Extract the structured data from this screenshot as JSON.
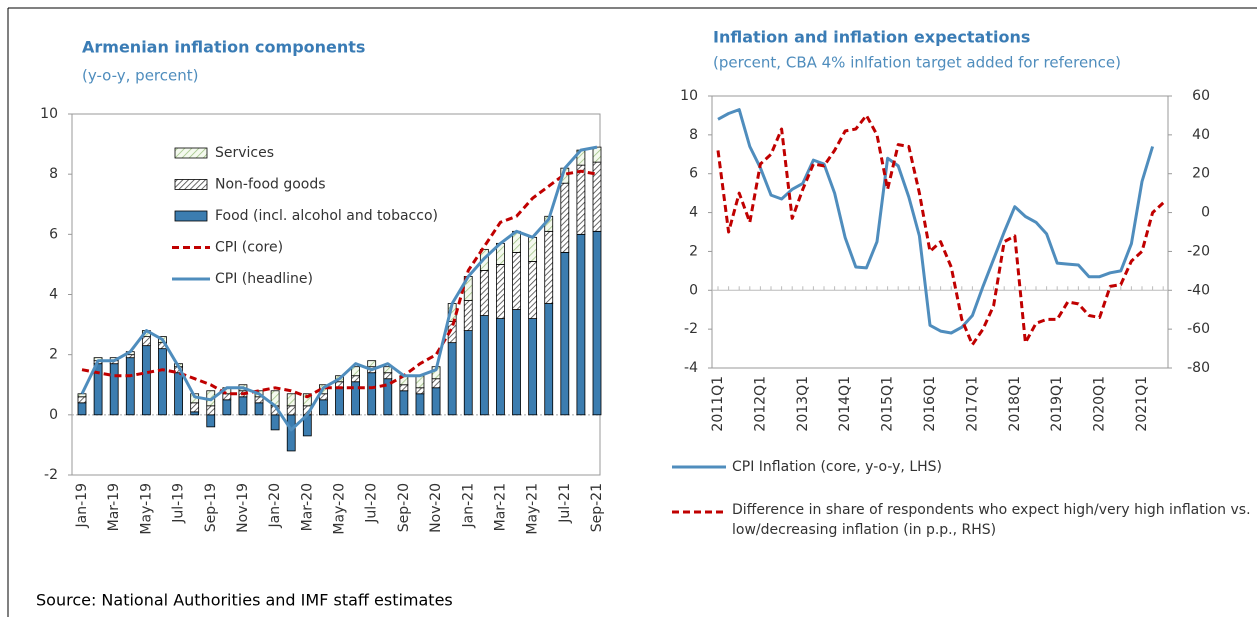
{
  "chart_data": [
    {
      "type": "bar",
      "title": "Armenian inflation components",
      "subtitle": "(y-o-y, percent)",
      "categories": [
        "Jan-19",
        null,
        "Mar-19",
        null,
        "May-19",
        null,
        "Jul-19",
        null,
        "Sep-19",
        null,
        "Nov-19",
        null,
        "Jan-20",
        null,
        "Mar-20",
        null,
        "May-20",
        null,
        "Jul-20",
        null,
        "Sep-20",
        null,
        "Nov-20",
        null,
        "Jan-21",
        null,
        "Mar-21",
        null,
        "May-21",
        null,
        "Jul-21",
        null,
        "Sep-21"
      ],
      "ylim": [
        -2,
        10
      ],
      "yticks": [
        -2,
        0,
        2,
        4,
        6,
        8,
        10
      ],
      "series": [
        {
          "name": "Services",
          "type": "bar",
          "pattern": "light-hatch",
          "color": "#e2efd9",
          "values": [
            0.1,
            0.1,
            0.1,
            0.1,
            0.2,
            0.2,
            0.1,
            0.3,
            0.5,
            0.2,
            0.2,
            0.2,
            0.5,
            0.4,
            0.4,
            0.3,
            0.2,
            0.3,
            0.2,
            0.2,
            0.3,
            0.4,
            0.4,
            0.6,
            0.8,
            0.7,
            0.7,
            0.7,
            0.8,
            0.5,
            0.5,
            0.5,
            0.5
          ]
        },
        {
          "name": "Non-food goods",
          "type": "bar",
          "pattern": "dark-hatch",
          "color": "#555555",
          "values": [
            0.2,
            0.1,
            0.1,
            0.1,
            0.3,
            0.2,
            0.2,
            0.3,
            0.3,
            0.2,
            0.2,
            0.2,
            0.3,
            0.3,
            0.3,
            0.2,
            0.2,
            0.2,
            0.2,
            0.2,
            0.2,
            0.2,
            0.3,
            0.7,
            1.0,
            1.5,
            1.8,
            1.9,
            1.9,
            2.4,
            2.3,
            2.3,
            2.3
          ]
        },
        {
          "name": "Food (incl. alcohol and tobacco)",
          "type": "bar",
          "pattern": "solid",
          "color": "#3c7db0",
          "values": [
            0.4,
            1.7,
            1.7,
            1.9,
            2.3,
            2.2,
            1.4,
            0.1,
            -0.4,
            0.5,
            0.6,
            0.4,
            -0.5,
            -1.2,
            -0.7,
            0.5,
            0.9,
            1.1,
            1.4,
            1.2,
            0.8,
            0.7,
            0.9,
            2.4,
            2.8,
            3.3,
            3.2,
            3.5,
            3.2,
            3.7,
            5.4,
            6.0,
            6.1
          ]
        },
        {
          "name": "CPI (core)",
          "type": "line",
          "dashed": true,
          "color": "#c00000",
          "values": [
            1.5,
            1.4,
            1.3,
            1.3,
            1.4,
            1.5,
            1.4,
            1.2,
            1.0,
            0.7,
            0.7,
            0.8,
            0.9,
            0.8,
            0.6,
            0.9,
            0.9,
            0.9,
            0.9,
            1.0,
            1.3,
            1.7,
            2.0,
            2.9,
            4.8,
            5.6,
            6.4,
            6.6,
            7.2,
            7.6,
            8.0,
            8.1,
            8.0
          ]
        },
        {
          "name": "CPI (headline)",
          "type": "line",
          "dashed": false,
          "color": "#4f8dbd",
          "values": [
            0.7,
            1.8,
            1.8,
            2.1,
            2.8,
            2.5,
            1.6,
            0.6,
            0.5,
            0.9,
            0.9,
            0.7,
            0.3,
            -0.5,
            0.0,
            0.9,
            1.2,
            1.7,
            1.5,
            1.7,
            1.3,
            1.3,
            1.5,
            3.7,
            4.6,
            5.2,
            5.7,
            6.1,
            5.9,
            6.5,
            8.2,
            8.8,
            8.9
          ]
        }
      ]
    },
    {
      "type": "line",
      "title": "Inflation and inflation expectations",
      "subtitle": "(percent, CBA 4% inlfation target added for reference)",
      "categories": [
        "2011Q1",
        null,
        null,
        null,
        "2012Q1",
        null,
        null,
        null,
        "2013Q1",
        null,
        null,
        null,
        "2014Q1",
        null,
        null,
        null,
        "2015Q1",
        null,
        null,
        null,
        "2016Q1",
        null,
        null,
        null,
        "2017Q1",
        null,
        null,
        null,
        "2018Q1",
        null,
        null,
        null,
        "2019Q1",
        null,
        null,
        null,
        "2020Q1",
        null,
        null,
        null,
        "2021Q1",
        null,
        null
      ],
      "ylim": [
        -4,
        10
      ],
      "yticks": [
        -4,
        -2,
        0,
        2,
        4,
        6,
        8,
        10
      ],
      "y2lim": [
        -80,
        60
      ],
      "y2ticks": [
        -80,
        -60,
        -40,
        -20,
        0,
        20,
        40,
        60
      ],
      "series": [
        {
          "name": "CPI Inflation (core, y-o-y, LHS)",
          "color": "#4f8dbd",
          "dashed": false,
          "values": [
            8.8,
            9.1,
            9.3,
            7.4,
            6.3,
            4.9,
            4.7,
            5.2,
            5.5,
            6.7,
            6.5,
            5.0,
            2.7,
            1.2,
            1.15,
            2.5,
            6.8,
            6.4,
            4.8,
            2.8,
            -1.8,
            -2.1,
            -2.2,
            -1.9,
            -1.3,
            0.2,
            1.6,
            3.0,
            4.3,
            3.8,
            3.5,
            2.9,
            1.4,
            1.35,
            1.3,
            0.7,
            0.7,
            0.9,
            1.0,
            2.4,
            5.6,
            7.4,
            null
          ]
        },
        {
          "name": "Difference in share of respondents who expect high/very high inflation vs. low/decreasing inflation (in p.p., RHS)",
          "color": "#c00000",
          "dashed": true,
          "axis": "y2",
          "values": [
            32,
            -10,
            10,
            -5,
            25,
            30,
            43,
            -3,
            12,
            25,
            24,
            32,
            42,
            43,
            50,
            40,
            12,
            35,
            34,
            10,
            -20,
            -15,
            -28,
            -55,
            -68,
            -60,
            -48,
            -15,
            -12,
            -67,
            -57,
            -55,
            -55,
            -46,
            -47,
            -53,
            -54,
            -38,
            -37,
            -25,
            -20,
            0,
            5
          ]
        }
      ]
    }
  ],
  "source": "Source: National Authorities and IMF staff estimates"
}
